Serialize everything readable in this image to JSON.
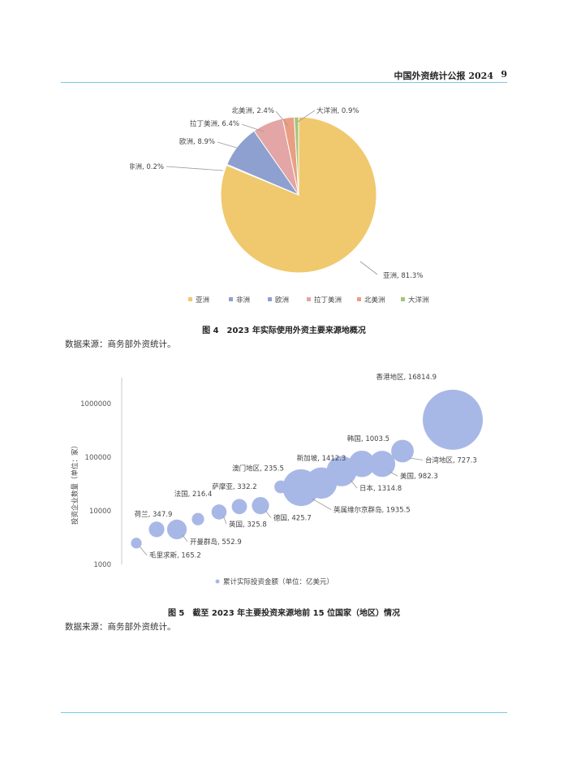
{
  "header": {
    "running_title": "中国外资统计公报 2024",
    "page_number": "9"
  },
  "colors": {
    "rule": "#7cc7e6",
    "asia": "#f0c96e",
    "africa": "#8aa2ce",
    "europe": "#8ea0cf",
    "latin_america": "#e3a5a5",
    "north_america": "#eb9f82",
    "oceania": "#a6c47c",
    "bubble": "#a8b8e6"
  },
  "figure4": {
    "caption": "图 4　2023 年实际使用外资主要来源地概况",
    "source": "数据来源：商务部外资统计。",
    "legend": [
      "亚洲",
      "非洲",
      "欧洲",
      "拉丁美洲",
      "北美洲",
      "大洋洲"
    ],
    "slice_labels": [
      "亚洲, 81.3%",
      "非洲, 0.2%",
      "欧洲, 8.9%",
      "拉丁美洲, 6.4%",
      "北美洲, 2.4%",
      "大洋洲, 0.9%"
    ]
  },
  "figure5": {
    "caption": "图 5　截至 2023 年主要投资来源地前 15 位国家（地区）情况",
    "source": "数据来源：商务部外资统计。",
    "ylabel": "投资企业数量（单位：家）",
    "y_ticks": [
      "1000000",
      "100000",
      "10000",
      "1000"
    ],
    "legend_label": "累计实际投资金额（单位：亿美元）",
    "point_labels": [
      "香港地区, 16814.9",
      "台湾地区, 727.3",
      "韩国, 1003.5",
      "美国, 982.3",
      "新加坡, 1412.3",
      "日本, 1314.8",
      "英属维尔京群岛, 1935.5",
      "澳门地区, 235.5",
      "德国, 425.7",
      "萨摩亚, 332.2",
      "英国, 325.8",
      "法国, 216.4",
      "荷兰, 347.9",
      "开曼群岛, 552.9",
      "毛里求斯, 165.2"
    ]
  },
  "chart_data": [
    {
      "type": "pie",
      "title": "",
      "categories": [
        "亚洲",
        "非洲",
        "欧洲",
        "拉丁美洲",
        "北美洲",
        "大洋洲"
      ],
      "values": [
        81.3,
        0.2,
        8.9,
        6.4,
        2.4,
        0.9
      ],
      "unit": "%",
      "colors": [
        "#f0c96e",
        "#8aa2ce",
        "#8ea0cf",
        "#e3a5a5",
        "#eb9f82",
        "#a6c47c"
      ],
      "legend": "bottom"
    },
    {
      "type": "scatter",
      "subtype": "bubble",
      "title": "",
      "ylabel": "投资企业数量（单位：家）",
      "yscale": "log",
      "ylim": [
        1000,
        1000000
      ],
      "size_label": "累计实际投资金额（单位：亿美元）",
      "legend": "bottom",
      "points": [
        {
          "name": "毛里求斯",
          "y": 2500,
          "size": 165.2
        },
        {
          "name": "荷兰",
          "y": 4500,
          "size": 347.9
        },
        {
          "name": "开曼群岛",
          "y": 4500,
          "size": 552.9
        },
        {
          "name": "法国",
          "y": 7000,
          "size": 216.4
        },
        {
          "name": "英国",
          "y": 9500,
          "size": 325.8
        },
        {
          "name": "萨摩亚",
          "y": 12000,
          "size": 332.2
        },
        {
          "name": "德国",
          "y": 12500,
          "size": 425.7
        },
        {
          "name": "澳门地区",
          "y": 28000,
          "size": 235.5
        },
        {
          "name": "英属维尔京群岛",
          "y": 27000,
          "size": 1935.5
        },
        {
          "name": "新加坡",
          "y": 33000,
          "size": 1412.3
        },
        {
          "name": "日本",
          "y": 55000,
          "size": 1314.8
        },
        {
          "name": "韩国",
          "y": 75000,
          "size": 1003.5
        },
        {
          "name": "美国",
          "y": 75000,
          "size": 982.3
        },
        {
          "name": "台湾地区",
          "y": 130000,
          "size": 727.3
        },
        {
          "name": "香港地区",
          "y": 500000,
          "size": 16814.9
        }
      ]
    }
  ]
}
